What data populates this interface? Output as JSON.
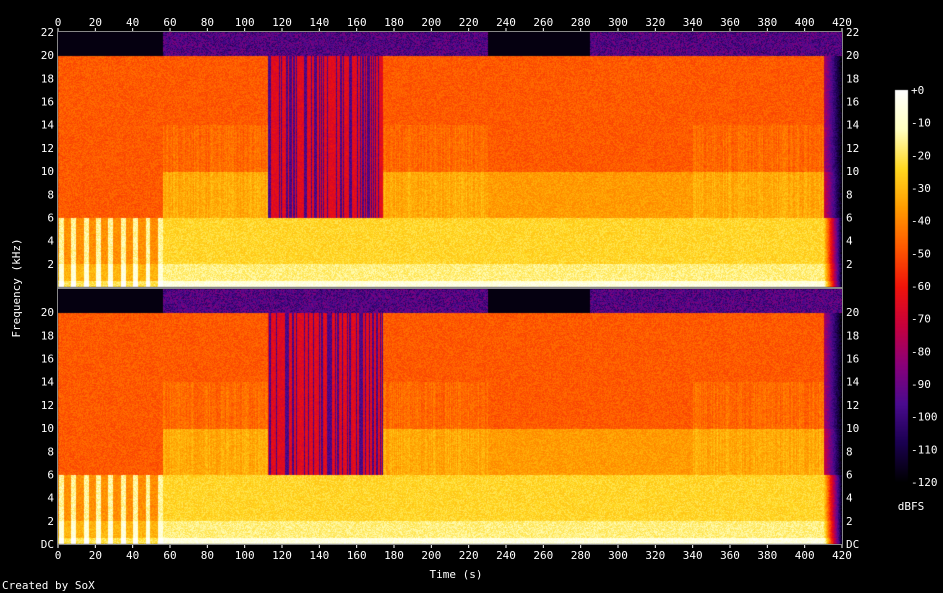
{
  "chart_data": {
    "type": "heatmap",
    "subtype": "spectrogram",
    "xlabel": "Time (s)",
    "ylabel": "Frequency (kHz)",
    "x_ticks": [
      0,
      20,
      40,
      60,
      80,
      100,
      120,
      140,
      160,
      180,
      200,
      220,
      240,
      260,
      280,
      300,
      320,
      340,
      360,
      380,
      400,
      420
    ],
    "xlim": [
      0,
      420
    ],
    "ylim": [
      0,
      22
    ],
    "y_tick_labels": [
      "DC",
      "2",
      "4",
      "6",
      "8",
      "10",
      "12",
      "14",
      "16",
      "18",
      "20",
      "22"
    ],
    "y_tick_values": [
      0,
      2,
      4,
      6,
      8,
      10,
      12,
      14,
      16,
      18,
      20,
      22
    ],
    "channels": 2,
    "colorbar": {
      "label": "dBFS",
      "ticks": [
        "+0",
        "-10",
        "-20",
        "-30",
        "-40",
        "-50",
        "-60",
        "-70",
        "-80",
        "-90",
        "-100",
        "-110",
        "-120"
      ],
      "range": [
        -120,
        0
      ],
      "colors": [
        "#000000",
        "#1a0050",
        "#4a0a8f",
        "#8a007a",
        "#c8003c",
        "#f0140a",
        "#ff5a00",
        "#ff9c00",
        "#ffd820",
        "#ffffc0",
        "#ffffff"
      ]
    },
    "segments_seconds": [
      {
        "start": 0,
        "end": 56,
        "hf_level": "high",
        "lowband": "striped"
      },
      {
        "start": 56,
        "end": 112,
        "hf_level": "high",
        "lowband": "dense"
      },
      {
        "start": 112,
        "end": 174,
        "hf_level": "mid",
        "lowband": "dense"
      },
      {
        "start": 174,
        "end": 230,
        "hf_level": "high",
        "lowband": "dense"
      },
      {
        "start": 230,
        "end": 285,
        "hf_level": "high",
        "lowband": "medium"
      },
      {
        "start": 285,
        "end": 340,
        "hf_level": "high",
        "lowband": "medium"
      },
      {
        "start": 340,
        "end": 410,
        "hf_level": "high",
        "lowband": "dense"
      },
      {
        "start": 410,
        "end": 420,
        "hf_level": "fade",
        "lowband": "fade"
      }
    ],
    "cutoff_khz": 20
  },
  "footer": {
    "credit": "Created by SoX"
  }
}
